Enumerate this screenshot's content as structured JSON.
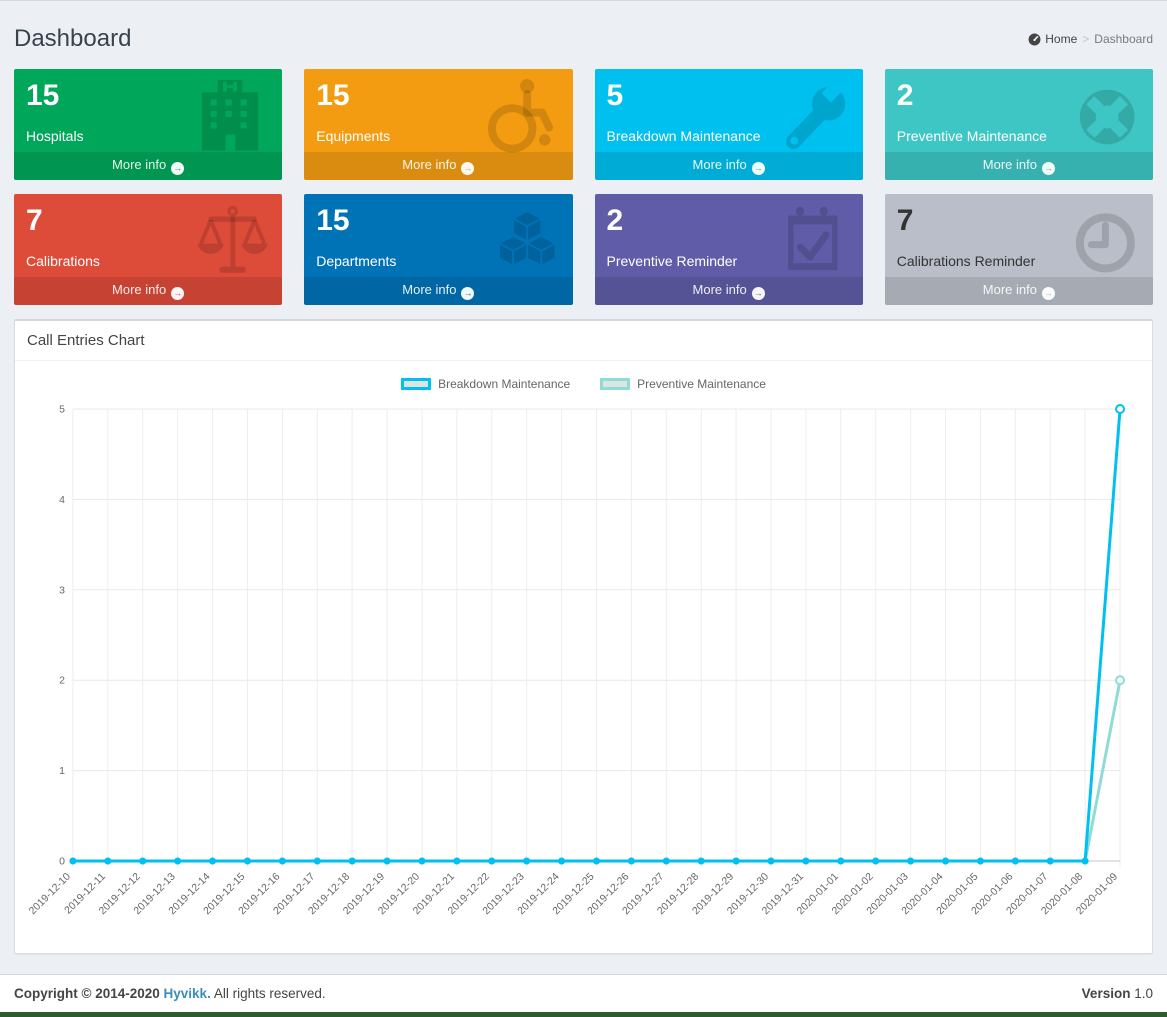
{
  "page": {
    "title": "Dashboard"
  },
  "breadcrumb": {
    "home_label": "Home",
    "separator": ">",
    "current": "Dashboard"
  },
  "icons": {
    "arrow_right": "→"
  },
  "boxes": [
    {
      "value": "15",
      "label": "Hospitals",
      "color": "#00a65a",
      "text_color": "#ffffff",
      "icon": "hospital-icon",
      "more_info_label": "More info"
    },
    {
      "value": "15",
      "label": "Equipments",
      "color": "#f39c12",
      "text_color": "#ffffff",
      "icon": "wheelchair-icon",
      "more_info_label": "More info"
    },
    {
      "value": "5",
      "label": "Breakdown Maintenance",
      "color": "#00c0ef",
      "text_color": "#ffffff",
      "icon": "wrench-icon",
      "more_info_label": "More info"
    },
    {
      "value": "2",
      "label": "Preventive Maintenance",
      "color": "#3dc6c3",
      "text_color": "#ffffff",
      "icon": "life-ring-icon",
      "more_info_label": "More info"
    },
    {
      "value": "7",
      "label": "Calibrations",
      "color": "#dd4b39",
      "text_color": "#ffffff",
      "icon": "balance-scale-icon",
      "more_info_label": "More info"
    },
    {
      "value": "15",
      "label": "Departments",
      "color": "#0073b7",
      "text_color": "#ffffff",
      "icon": "cubes-icon",
      "more_info_label": "More info"
    },
    {
      "value": "2",
      "label": "Preventive Reminder",
      "color": "#605ca8",
      "text_color": "#ffffff",
      "icon": "calendar-check-icon",
      "more_info_label": "More info"
    },
    {
      "value": "7",
      "label": "Calibrations Reminder",
      "color": "#b9bec8",
      "text_color": "#333333",
      "icon": "clock-icon",
      "more_info_label": "More info"
    }
  ],
  "chart_panel": {
    "title": "Call Entries Chart"
  },
  "chart_data": {
    "type": "line",
    "title": "Call Entries Chart",
    "x": [
      "2019-12-10",
      "2019-12-11",
      "2019-12-12",
      "2019-12-13",
      "2019-12-14",
      "2019-12-15",
      "2019-12-16",
      "2019-12-17",
      "2019-12-18",
      "2019-12-19",
      "2019-12-20",
      "2019-12-21",
      "2019-12-22",
      "2019-12-23",
      "2019-12-24",
      "2019-12-25",
      "2019-12-26",
      "2019-12-27",
      "2019-12-28",
      "2019-12-29",
      "2019-12-30",
      "2019-12-31",
      "2020-01-01",
      "2020-01-02",
      "2020-01-03",
      "2020-01-04",
      "2020-01-05",
      "2020-01-06",
      "2020-01-07",
      "2020-01-08",
      "2020-01-09"
    ],
    "series": [
      {
        "name": "Breakdown Maintenance",
        "color": "#00c0ef",
        "values": [
          0,
          0,
          0,
          0,
          0,
          0,
          0,
          0,
          0,
          0,
          0,
          0,
          0,
          0,
          0,
          0,
          0,
          0,
          0,
          0,
          0,
          0,
          0,
          0,
          0,
          0,
          0,
          0,
          0,
          0,
          5
        ]
      },
      {
        "name": "Preventive Maintenance",
        "color": "#8fdcd6",
        "values": [
          0,
          0,
          0,
          0,
          0,
          0,
          0,
          0,
          0,
          0,
          0,
          0,
          0,
          0,
          0,
          0,
          0,
          0,
          0,
          0,
          0,
          0,
          0,
          0,
          0,
          0,
          0,
          0,
          0,
          0,
          2
        ]
      }
    ],
    "ylim": [
      0,
      5
    ],
    "yticks": [
      0,
      1,
      2,
      3,
      4,
      5
    ],
    "grid": true,
    "legend_position": "top",
    "legend_swatch_fill": "#dde4e4"
  },
  "footer": {
    "copyright_bold": "Copyright © 2014-2020",
    "brand": "Hyvikk.",
    "rights": "All rights reserved.",
    "version_label": "Version",
    "version_value": "1.0"
  }
}
